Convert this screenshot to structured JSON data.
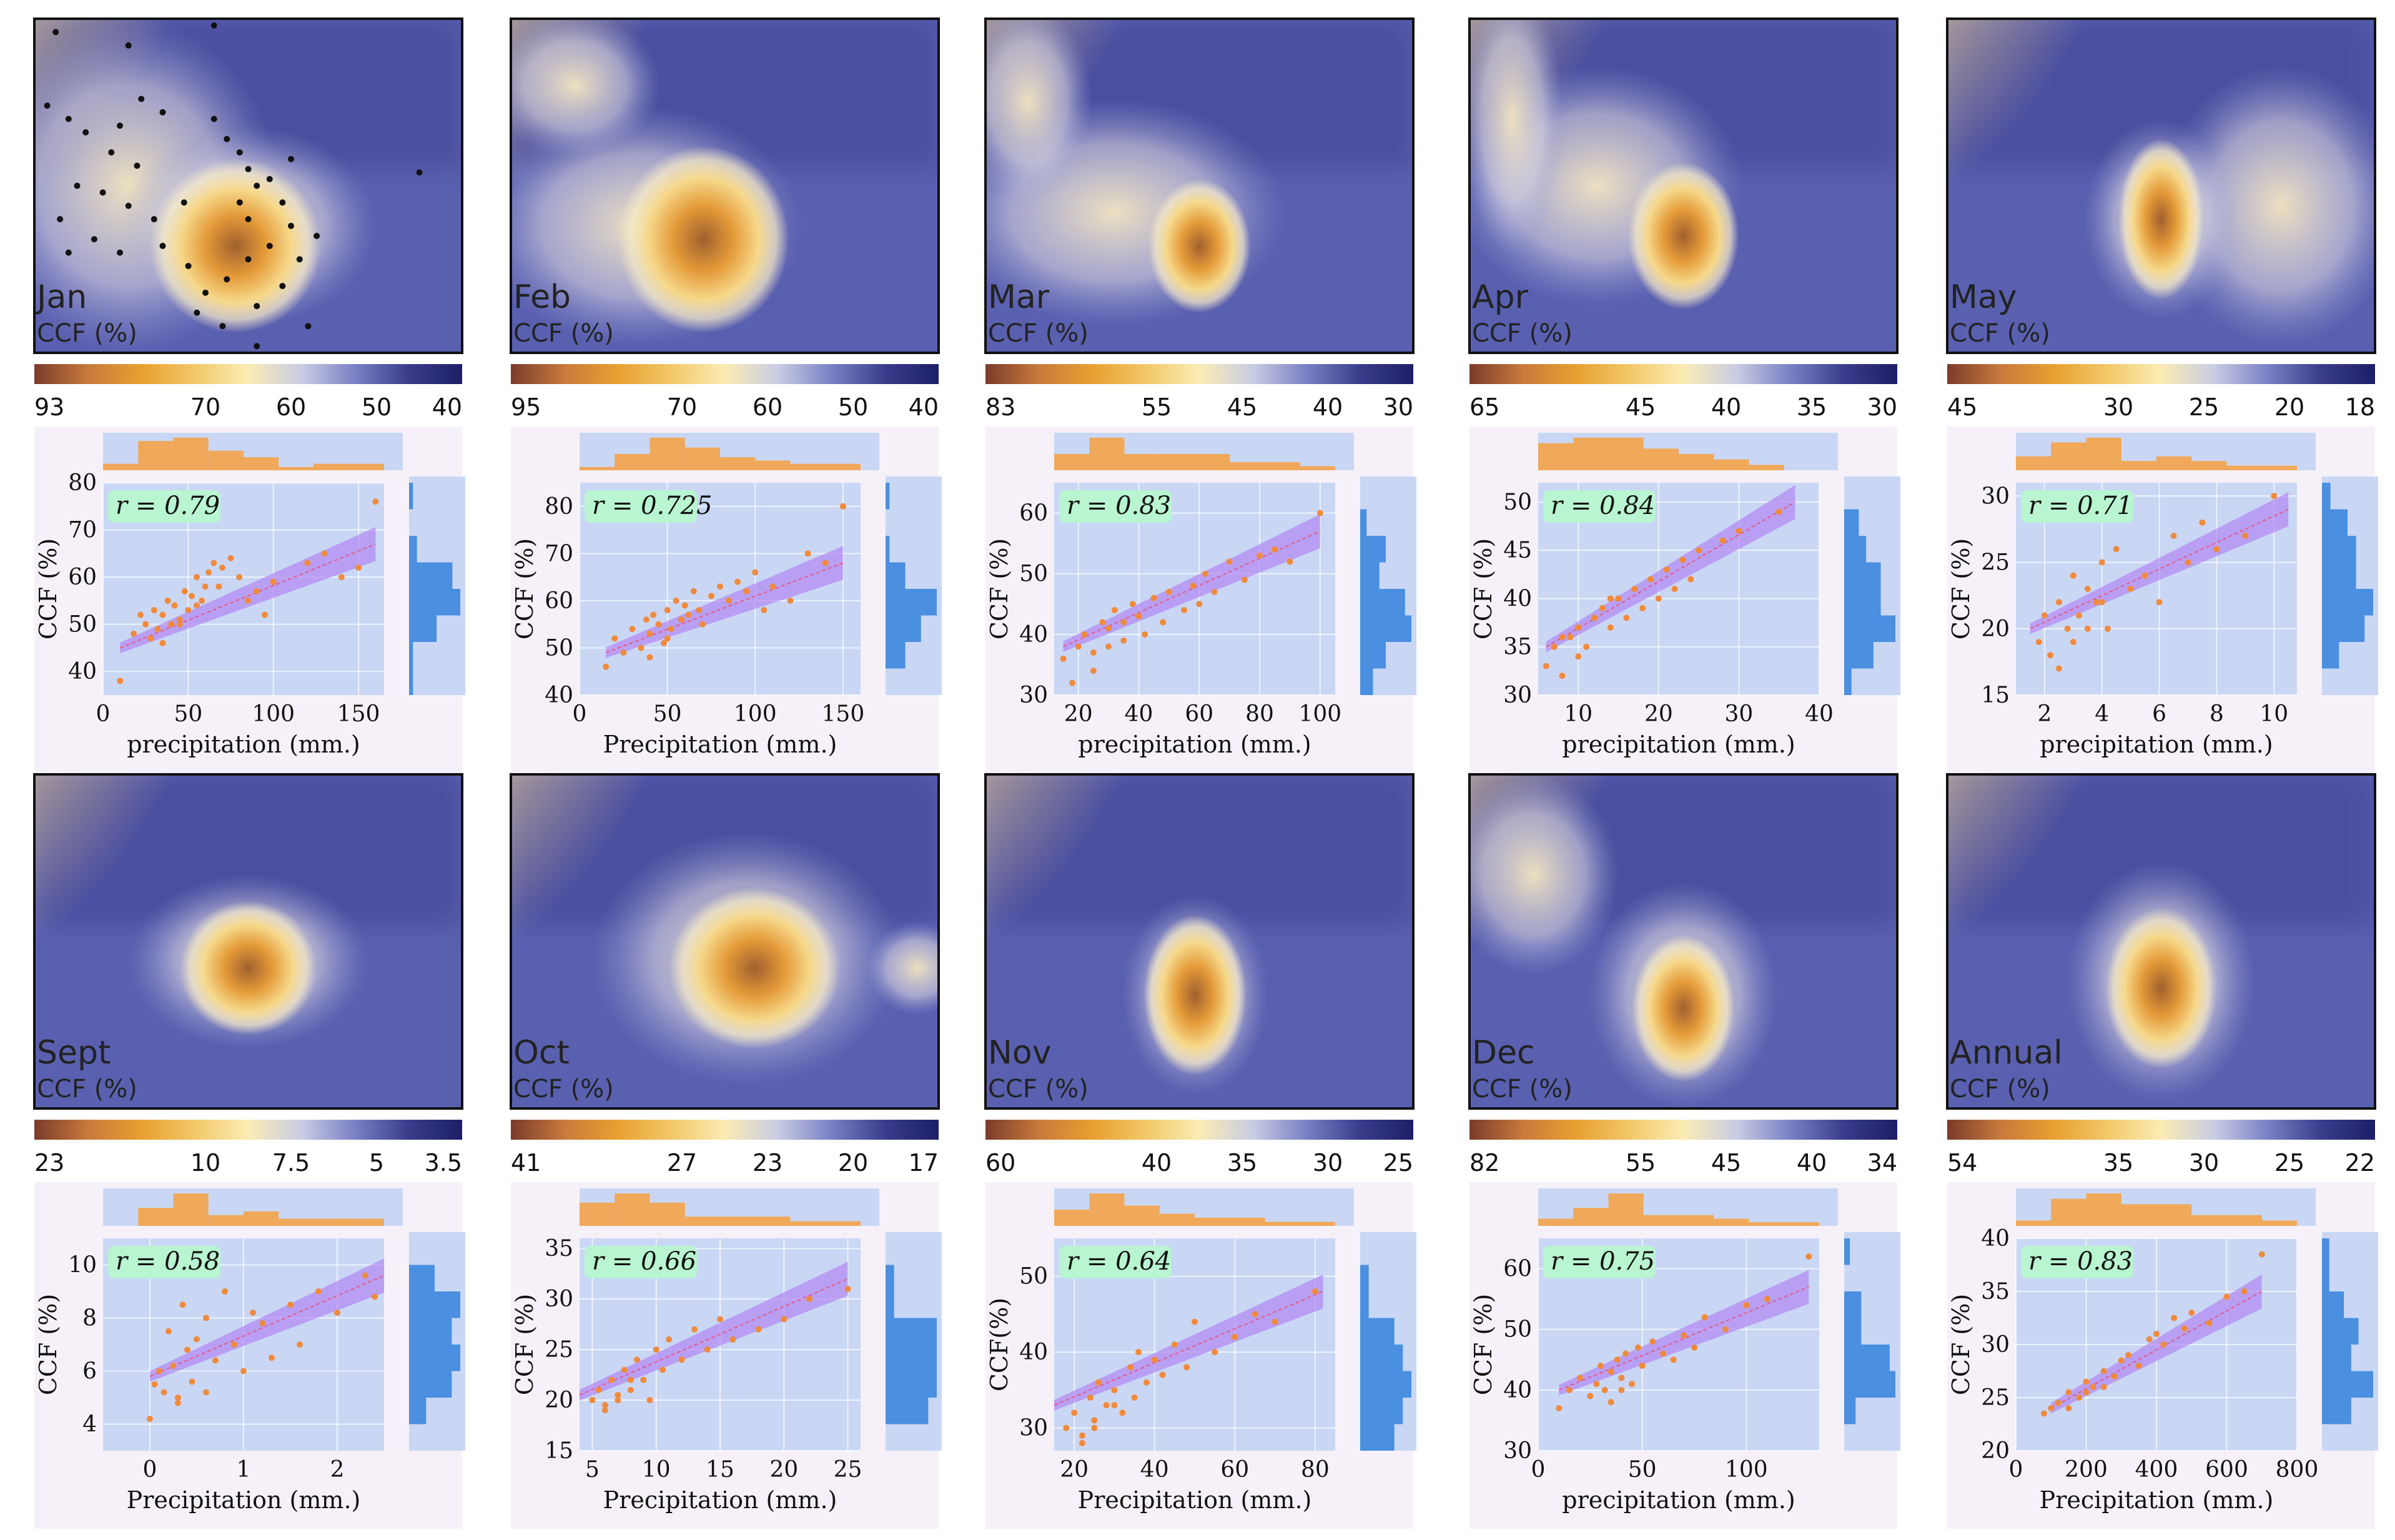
{
  "figure": {
    "panels": [
      {
        "month": "Jan",
        "map_label": "Jan",
        "cbar_label": "CCF (%)",
        "cbar_ticks": [
          "93",
          "70",
          "60",
          "50",
          "40"
        ],
        "xlabel": "precipitation (mm.)",
        "ylabel": "CCF (%)",
        "r_label": "r = 0.79",
        "xticks": [
          "0",
          "50",
          "100",
          "150"
        ],
        "yticks": [
          "40",
          "50",
          "60",
          "70",
          "80"
        ],
        "xlim": [
          0,
          165
        ],
        "ylim": [
          35,
          80
        ],
        "fit": [
          [
            10,
            45
          ],
          [
            160,
            67
          ]
        ],
        "has_stations": true
      },
      {
        "month": "Feb",
        "map_label": "Feb",
        "cbar_label": "CCF (%)",
        "cbar_ticks": [
          "95",
          "70",
          "60",
          "50",
          "40"
        ],
        "xlabel": "Precipitation (mm.)",
        "ylabel": "CCF (%)",
        "r_label": "r = 0.725",
        "xticks": [
          "0",
          "50",
          "100",
          "150"
        ],
        "yticks": [
          "40",
          "50",
          "60",
          "70",
          "80"
        ],
        "xlim": [
          0,
          160
        ],
        "ylim": [
          40,
          85
        ],
        "fit": [
          [
            15,
            49
          ],
          [
            150,
            68
          ]
        ],
        "has_stations": false
      },
      {
        "month": "Mar",
        "map_label": "Mar",
        "cbar_label": "CCF (%)",
        "cbar_ticks": [
          "83",
          "55",
          "45",
          "40",
          "30"
        ],
        "xlabel": "precipitation (mm.)",
        "ylabel": "CCF (%)",
        "r_label": "r = 0.83",
        "xticks": [
          "20",
          "40",
          "60",
          "80",
          "100"
        ],
        "yticks": [
          "30",
          "40",
          "50",
          "60"
        ],
        "xlim": [
          12,
          105
        ],
        "ylim": [
          30,
          65
        ],
        "fit": [
          [
            15,
            38
          ],
          [
            100,
            57
          ]
        ],
        "has_stations": false
      },
      {
        "month": "Apr",
        "map_label": "Apr",
        "cbar_label": "CCF (%)",
        "cbar_ticks": [
          "65",
          "45",
          "40",
          "35",
          "30"
        ],
        "xlabel": "precipitation (mm.)",
        "ylabel": "CCF (%)",
        "r_label": "r = 0.84",
        "xticks": [
          "10",
          "20",
          "30",
          "40"
        ],
        "yticks": [
          "30",
          "35",
          "40",
          "45",
          "50"
        ],
        "xlim": [
          5,
          40
        ],
        "ylim": [
          30,
          52
        ],
        "fit": [
          [
            6,
            35
          ],
          [
            37,
            50
          ]
        ],
        "has_stations": false
      },
      {
        "month": "May",
        "map_label": "May",
        "cbar_label": "CCF (%)",
        "cbar_ticks": [
          "45",
          "30",
          "25",
          "20",
          "18"
        ],
        "xlabel": "precipitation (mm.)",
        "ylabel": "CCF (%)",
        "r_label": "r = 0.71",
        "xticks": [
          "2",
          "4",
          "6",
          "8",
          "10"
        ],
        "yticks": [
          "15",
          "20",
          "25",
          "30"
        ],
        "xlim": [
          1,
          10.8
        ],
        "ylim": [
          15,
          31
        ],
        "fit": [
          [
            1.5,
            20
          ],
          [
            10.5,
            29
          ]
        ],
        "has_stations": false
      },
      {
        "month": "Sept",
        "map_label": "Sept",
        "cbar_label": "CCF (%)",
        "cbar_ticks": [
          "23",
          "10",
          "7.5",
          "5",
          "3.5"
        ],
        "xlabel": "Precipitation (mm.)",
        "ylabel": "CCF (%)",
        "r_label": "r = 0.58",
        "xticks": [
          "0",
          "1",
          "2"
        ],
        "yticks": [
          "4",
          "6",
          "8",
          "10"
        ],
        "xlim": [
          -0.5,
          2.5
        ],
        "ylim": [
          3,
          11
        ],
        "fit": [
          [
            0,
            5.8
          ],
          [
            2.5,
            9.6
          ]
        ],
        "has_stations": false
      },
      {
        "month": "Oct",
        "map_label": "Oct",
        "cbar_label": "CCF (%)",
        "cbar_ticks": [
          "41",
          "27",
          "23",
          "20",
          "17"
        ],
        "xlabel": "Precipitation (mm.)",
        "ylabel": "CCF (%)",
        "r_label": "r = 0.66",
        "xticks": [
          "5",
          "10",
          "15",
          "20",
          "25"
        ],
        "yticks": [
          "15",
          "20",
          "25",
          "30",
          "35"
        ],
        "xlim": [
          4,
          26
        ],
        "ylim": [
          15,
          36
        ],
        "fit": [
          [
            4,
            20.5
          ],
          [
            25,
            32
          ]
        ],
        "has_stations": false
      },
      {
        "month": "Nov",
        "map_label": "Nov",
        "cbar_label": "CCF (%)",
        "cbar_ticks": [
          "60",
          "40",
          "35",
          "30",
          "25"
        ],
        "xlabel": "Precipitation (mm.)",
        "ylabel": "CCF(%)",
        "r_label": "r = 0.64",
        "xticks": [
          "20",
          "40",
          "60",
          "80"
        ],
        "yticks": [
          "30",
          "40",
          "50"
        ],
        "xlim": [
          15,
          85
        ],
        "ylim": [
          27,
          55
        ],
        "fit": [
          [
            15,
            33
          ],
          [
            82,
            48
          ]
        ],
        "has_stations": false
      },
      {
        "month": "Dec",
        "map_label": "Dec",
        "cbar_label": "CCF (%)",
        "cbar_ticks": [
          "82",
          "55",
          "45",
          "40",
          "34"
        ],
        "xlabel": "precipitation (mm.)",
        "ylabel": "CCF (%)",
        "r_label": "r = 0.75",
        "xticks": [
          "0",
          "50",
          "100"
        ],
        "yticks": [
          "30",
          "40",
          "50",
          "60"
        ],
        "xlim": [
          0,
          135
        ],
        "ylim": [
          30,
          65
        ],
        "fit": [
          [
            10,
            40
          ],
          [
            130,
            57
          ]
        ],
        "has_stations": false
      },
      {
        "month": "Annual",
        "map_label": "Annual",
        "cbar_label": "CCF (%)",
        "cbar_ticks": [
          "54",
          "35",
          "30",
          "25",
          "22"
        ],
        "xlabel": "Precipitation (mm.)",
        "ylabel": "CCF (%)",
        "r_label": "r = 0.83",
        "xticks": [
          "0",
          "200",
          "400",
          "600",
          "800"
        ],
        "yticks": [
          "20",
          "25",
          "30",
          "35",
          "40"
        ],
        "xlim": [
          0,
          800
        ],
        "ylim": [
          20,
          40
        ],
        "fit": [
          [
            100,
            24
          ],
          [
            700,
            35
          ]
        ],
        "has_stations": false
      }
    ]
  },
  "chart_data": [
    {
      "type": "scatter",
      "title": "Jan",
      "xlabel": "precipitation (mm.)",
      "ylabel": "CCF (%)",
      "annotation": "r = 0.79",
      "xlim": [
        0,
        165
      ],
      "ylim": [
        35,
        80
      ],
      "x": [
        10,
        18,
        22,
        25,
        28,
        30,
        32,
        35,
        38,
        40,
        42,
        45,
        48,
        50,
        52,
        55,
        58,
        60,
        62,
        65,
        68,
        70,
        75,
        80,
        85,
        90,
        95,
        100,
        120,
        130,
        140,
        150,
        160,
        35,
        45,
        55
      ],
      "y": [
        38,
        48,
        52,
        50,
        47,
        53,
        49,
        52,
        55,
        50,
        54,
        51,
        57,
        53,
        56,
        60,
        55,
        58,
        61,
        63,
        58,
        62,
        64,
        60,
        55,
        57,
        52,
        59,
        63,
        65,
        60,
        62,
        76,
        46,
        50,
        54
      ]
    },
    {
      "type": "scatter",
      "title": "Feb",
      "xlabel": "Precipitation (mm.)",
      "ylabel": "CCF (%)",
      "annotation": "r = 0.725",
      "xlim": [
        0,
        160
      ],
      "ylim": [
        40,
        85
      ],
      "x": [
        15,
        20,
        25,
        30,
        35,
        38,
        40,
        42,
        45,
        48,
        50,
        52,
        55,
        58,
        60,
        62,
        65,
        68,
        70,
        75,
        80,
        85,
        90,
        95,
        100,
        105,
        110,
        120,
        130,
        140,
        150,
        40,
        50,
        60
      ],
      "y": [
        46,
        52,
        49,
        54,
        50,
        56,
        53,
        57,
        55,
        51,
        58,
        54,
        60,
        56,
        59,
        57,
        62,
        58,
        55,
        61,
        63,
        60,
        64,
        62,
        66,
        58,
        63,
        60,
        70,
        68,
        80,
        48,
        52,
        59
      ]
    },
    {
      "type": "scatter",
      "title": "Mar",
      "xlabel": "precipitation (mm.)",
      "ylabel": "CCF (%)",
      "annotation": "r = 0.83",
      "xlim": [
        12,
        105
      ],
      "ylim": [
        30,
        65
      ],
      "x": [
        15,
        18,
        20,
        22,
        25,
        28,
        30,
        32,
        35,
        38,
        40,
        42,
        45,
        48,
        50,
        55,
        58,
        60,
        62,
        65,
        70,
        75,
        80,
        85,
        90,
        100,
        25,
        30,
        35
      ],
      "y": [
        36,
        32,
        38,
        40,
        37,
        42,
        41,
        44,
        39,
        45,
        43,
        40,
        46,
        42,
        47,
        44,
        48,
        45,
        50,
        47,
        52,
        49,
        53,
        54,
        52,
        60,
        34,
        38,
        42
      ]
    },
    {
      "type": "scatter",
      "title": "Apr",
      "xlabel": "precipitation (mm.)",
      "ylabel": "CCF (%)",
      "annotation": "r = 0.84",
      "xlim": [
        5,
        40
      ],
      "ylim": [
        30,
        52
      ],
      "x": [
        6,
        7,
        8,
        9,
        10,
        11,
        12,
        13,
        14,
        15,
        16,
        17,
        18,
        19,
        20,
        21,
        22,
        23,
        24,
        25,
        28,
        30,
        35,
        8,
        10,
        12,
        14
      ],
      "y": [
        33,
        35,
        32,
        36,
        37,
        35,
        38,
        39,
        37,
        40,
        38,
        41,
        39,
        42,
        40,
        43,
        41,
        44,
        42,
        45,
        46,
        47,
        49,
        36,
        34,
        38,
        40
      ]
    },
    {
      "type": "scatter",
      "title": "May",
      "xlabel": "precipitation (mm.)",
      "ylabel": "CCF (%)",
      "annotation": "r = 0.71",
      "xlim": [
        1,
        10.8
      ],
      "ylim": [
        15,
        31
      ],
      "x": [
        1.8,
        2,
        2.2,
        2.5,
        2.8,
        3,
        3.2,
        3.5,
        3.8,
        4,
        4.2,
        4.5,
        5,
        5.5,
        6,
        6.5,
        7,
        7.5,
        8,
        9,
        10,
        2.5,
        3,
        3.5,
        4
      ],
      "y": [
        19,
        21,
        18,
        22,
        20,
        24,
        21,
        23,
        22,
        25,
        20,
        26,
        23,
        24,
        22,
        27,
        25,
        28,
        26,
        27,
        30,
        17,
        19,
        20,
        22
      ]
    },
    {
      "type": "scatter",
      "title": "Sept",
      "xlabel": "Precipitation (mm.)",
      "ylabel": "CCF (%)",
      "annotation": "r = 0.58",
      "xlim": [
        -0.5,
        2.5
      ],
      "ylim": [
        3,
        11
      ],
      "x": [
        0,
        0.05,
        0.1,
        0.15,
        0.2,
        0.25,
        0.3,
        0.35,
        0.4,
        0.45,
        0.5,
        0.6,
        0.7,
        0.8,
        0.9,
        1,
        1.1,
        1.2,
        1.3,
        1.5,
        1.6,
        1.8,
        2.0,
        2.3,
        2.4,
        0.3,
        0.6
      ],
      "y": [
        4.2,
        5.5,
        6,
        5.2,
        7.5,
        6.2,
        5,
        8.5,
        6.8,
        5.6,
        7.2,
        8,
        6.4,
        9,
        7,
        6,
        8.2,
        7.8,
        6.5,
        8.5,
        7,
        9,
        8.2,
        9.6,
        8.8,
        4.8,
        5.2
      ]
    },
    {
      "type": "scatter",
      "title": "Oct",
      "xlabel": "Precipitation (mm.)",
      "ylabel": "CCF (%)",
      "annotation": "r = 0.66",
      "xlim": [
        4,
        26
      ],
      "ylim": [
        15,
        36
      ],
      "x": [
        5,
        5.5,
        6,
        6.5,
        7,
        7.5,
        8,
        8.5,
        9,
        9.5,
        10,
        10.5,
        11,
        12,
        13,
        14,
        15,
        16,
        18,
        20,
        22,
        25,
        6,
        7,
        8
      ],
      "y": [
        20,
        21,
        19.5,
        22,
        20.5,
        23,
        21,
        24,
        22,
        20,
        25,
        23,
        26,
        24,
        27,
        25,
        28,
        26,
        27,
        28,
        30,
        31,
        19,
        20,
        22
      ]
    },
    {
      "type": "scatter",
      "title": "Nov",
      "xlabel": "Precipitation (mm.)",
      "ylabel": "CCF(%)",
      "annotation": "r = 0.64",
      "xlim": [
        15,
        85
      ],
      "ylim": [
        27,
        55
      ],
      "x": [
        18,
        20,
        22,
        24,
        25,
        26,
        28,
        30,
        32,
        34,
        35,
        36,
        38,
        40,
        42,
        45,
        48,
        50,
        55,
        60,
        65,
        70,
        80,
        22,
        25,
        30
      ],
      "y": [
        30,
        32,
        29,
        34,
        31,
        36,
        33,
        35,
        32,
        38,
        34,
        40,
        36,
        39,
        37,
        41,
        38,
        44,
        40,
        42,
        45,
        44,
        48,
        28,
        30,
        33
      ]
    },
    {
      "type": "scatter",
      "title": "Dec",
      "xlabel": "precipitation (mm.)",
      "ylabel": "CCF (%)",
      "annotation": "r = 0.75",
      "xlim": [
        0,
        135
      ],
      "ylim": [
        30,
        65
      ],
      "x": [
        10,
        15,
        20,
        25,
        28,
        30,
        32,
        35,
        38,
        40,
        42,
        45,
        48,
        50,
        55,
        60,
        65,
        70,
        75,
        80,
        90,
        100,
        110,
        130,
        35,
        40
      ],
      "y": [
        37,
        40,
        42,
        39,
        41,
        44,
        40,
        43,
        45,
        42,
        46,
        41,
        47,
        44,
        48,
        46,
        45,
        49,
        47,
        52,
        50,
        54,
        55,
        62,
        38,
        40
      ]
    },
    {
      "type": "scatter",
      "title": "Annual",
      "xlabel": "Precipitation (mm.)",
      "ylabel": "CCF (%)",
      "annotation": "r = 0.83",
      "xlim": [
        0,
        800
      ],
      "ylim": [
        20,
        40
      ],
      "x": [
        80,
        100,
        120,
        150,
        180,
        200,
        220,
        250,
        280,
        300,
        320,
        350,
        380,
        400,
        420,
        450,
        480,
        500,
        550,
        600,
        650,
        700,
        150,
        200,
        250
      ],
      "y": [
        23.5,
        24,
        24.5,
        25.5,
        25,
        26.5,
        26,
        27.5,
        27,
        28.5,
        29,
        28,
        30.5,
        31,
        30,
        32.5,
        31.5,
        33,
        32,
        34.5,
        35,
        38.5,
        24,
        25.5,
        26
      ]
    }
  ],
  "colorbar_gradient": [
    "#7a3b2a",
    "#c87a3c",
    "#e8a030",
    "#f2c868",
    "#fbecb4",
    "#c8cce4",
    "#7a80c4",
    "#3a3c8c",
    "#1c1f66"
  ],
  "colors": {
    "scatter_point": "#f08a3c",
    "fit_band": "#b288f2",
    "fit_line": "#e05a8a",
    "plot_bg": "#c9d7f5",
    "x_hist": "#f0a85a",
    "y_hist": "#4a8fe0",
    "r_badge": "#b8f5d0"
  }
}
